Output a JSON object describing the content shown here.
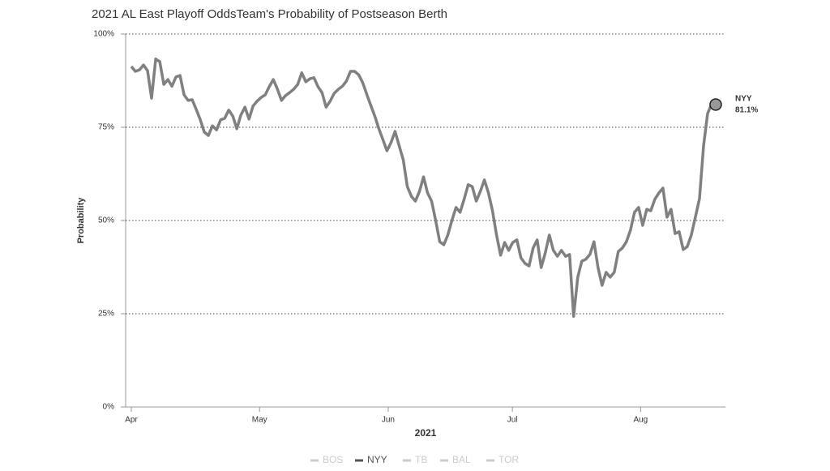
{
  "chart_data": {
    "type": "line",
    "title": "2021 AL East Playoff OddsTeam's Probability of Postseason Berth",
    "xlabel": "2021",
    "ylabel": "Probability",
    "x": [
      0,
      1,
      2,
      3,
      4,
      5,
      6,
      7,
      8,
      9,
      10,
      11,
      12,
      13,
      14,
      15,
      16,
      17,
      18,
      19,
      20,
      21,
      22,
      23,
      24,
      25,
      26,
      27,
      28,
      29,
      30,
      31,
      32,
      33,
      34,
      35,
      36,
      37,
      38,
      39,
      40,
      41,
      42,
      43,
      44,
      45,
      46,
      47,
      48,
      49,
      50,
      51,
      52,
      53,
      54,
      55,
      56,
      57,
      58,
      59,
      60,
      61,
      62,
      63,
      64,
      65,
      66,
      67,
      68,
      69,
      70,
      71,
      72,
      73,
      74,
      75,
      76,
      77,
      78,
      79,
      80,
      81,
      82,
      83,
      84,
      85,
      86,
      87,
      88,
      89,
      90,
      91,
      92,
      93,
      94,
      95,
      96,
      97,
      98,
      99,
      100,
      101,
      102,
      103,
      104,
      105,
      106,
      107,
      108,
      109,
      110,
      111,
      112,
      113,
      114,
      115,
      116,
      117,
      118,
      119,
      120,
      121,
      122,
      123,
      124,
      125,
      126,
      127,
      128,
      129,
      130,
      131,
      132,
      133,
      134,
      135,
      136,
      137,
      138,
      139,
      140,
      141,
      142,
      143,
      144
    ],
    "series": [
      {
        "name": "NYY",
        "color": "#808080",
        "values": [
          91.3,
          90,
          90.4,
          91.7,
          90.2,
          82.8,
          93.3,
          92.6,
          86.5,
          87.8,
          86,
          88.5,
          88.9,
          83.7,
          82.2,
          82.4,
          79.8,
          77,
          73.7,
          72.8,
          75.4,
          74.3,
          77,
          77.4,
          79.6,
          78,
          74.6,
          78.3,
          80.4,
          77.2,
          80.7,
          82,
          83,
          83.7,
          85.9,
          87.8,
          85.2,
          82.2,
          83.5,
          84.3,
          85.2,
          86.5,
          89.6,
          87.2,
          88,
          88.3,
          85.9,
          84.3,
          80.4,
          82,
          84.1,
          85.2,
          86,
          87.4,
          90,
          90,
          89.1,
          87,
          83.9,
          80.9,
          78,
          74.6,
          71.7,
          68.7,
          70.9,
          73.9,
          70,
          66.3,
          59.1,
          56.5,
          55.2,
          57.8,
          61.7,
          57.4,
          55.2,
          50,
          44.3,
          43.5,
          46.1,
          50,
          53.5,
          52.2,
          55.7,
          59.6,
          59.1,
          55.2,
          57.8,
          60.9,
          57.4,
          52.6,
          46.1,
          40.7,
          44.1,
          42,
          44.1,
          44.8,
          40,
          38.5,
          37.8,
          42.6,
          44.8,
          37.4,
          41.3,
          46.1,
          42,
          40.4,
          42,
          40.4,
          40.9,
          24.3,
          34.8,
          39.1,
          39.6,
          40.9,
          44.3,
          37.4,
          32.6,
          36.1,
          34.8,
          36.1,
          41.7,
          42.6,
          44.3,
          47.4,
          52.2,
          53.5,
          48.7,
          53,
          52.6,
          55.7,
          57.4,
          58.7,
          50.9,
          53,
          46.5,
          47,
          42.2,
          43,
          46.1,
          50.9,
          55.9,
          70,
          78.7,
          81.3,
          81.1
        ]
      }
    ],
    "end_label": "81.1%",
    "xlim": [
      -1.4,
      146.4
    ],
    "xticks": [
      {
        "value": 0,
        "label": "Apr"
      },
      {
        "value": 31.6,
        "label": "May"
      },
      {
        "value": 63.3,
        "label": "Jun"
      },
      {
        "value": 93.9,
        "label": "Jul"
      },
      {
        "value": 125.5,
        "label": "Aug"
      }
    ],
    "ylim": [
      0,
      100
    ],
    "yticks": [
      {
        "value": 0,
        "label": "0%"
      },
      {
        "value": 25,
        "label": "25%"
      },
      {
        "value": 50,
        "label": "50%"
      },
      {
        "value": 75,
        "label": "75%"
      },
      {
        "value": 100,
        "label": "100%"
      }
    ],
    "grid": true,
    "legend": [
      {
        "name": "BOS",
        "color": "#cccccc"
      },
      {
        "name": "NYY",
        "color": "#555555"
      },
      {
        "name": "TB",
        "color": "#cccccc"
      },
      {
        "name": "BAL",
        "color": "#cccccc"
      },
      {
        "name": "TOR",
        "color": "#cccccc"
      }
    ]
  }
}
